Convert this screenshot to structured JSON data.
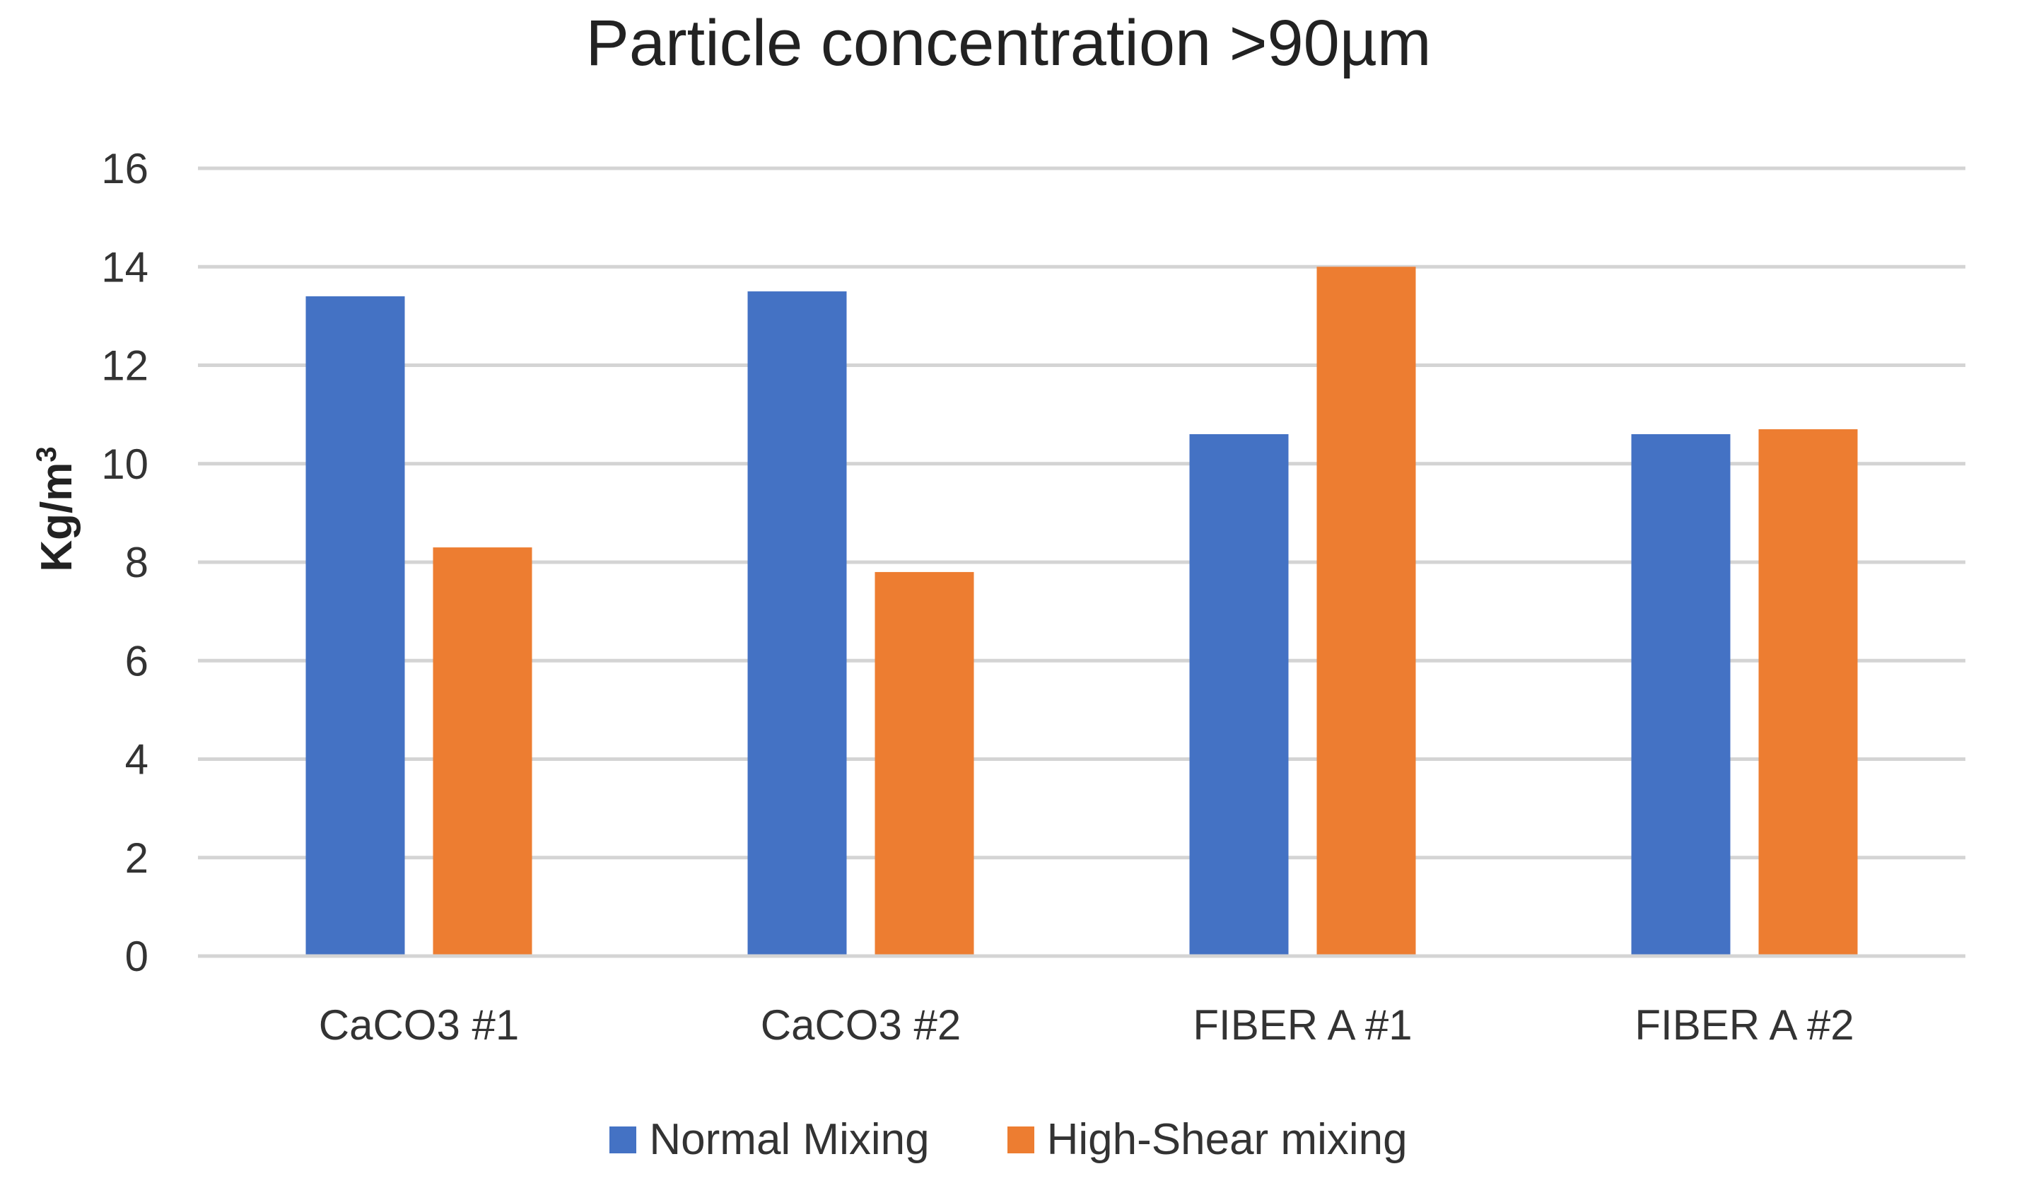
{
  "chart_data": {
    "type": "bar",
    "title": "Particle concentration >90µm",
    "xlabel": "",
    "ylabel": "Kg/m",
    "ylabel_superscript": "3",
    "ylim": [
      0,
      16
    ],
    "yticks": [
      0,
      2,
      4,
      6,
      8,
      10,
      12,
      14,
      16
    ],
    "grid": true,
    "legend_position": "bottom-center",
    "categories": [
      "CaCO3 #1",
      "CaCO3 #2",
      "FIBER A #1",
      "FIBER A #2"
    ],
    "series": [
      {
        "name": "Normal Mixing",
        "color": "#4472C4",
        "values": [
          13.4,
          13.5,
          10.6,
          10.6
        ]
      },
      {
        "name": "High-Shear mixing",
        "color": "#ED7D31",
        "values": [
          8.3,
          7.8,
          14.0,
          10.7
        ]
      }
    ]
  }
}
